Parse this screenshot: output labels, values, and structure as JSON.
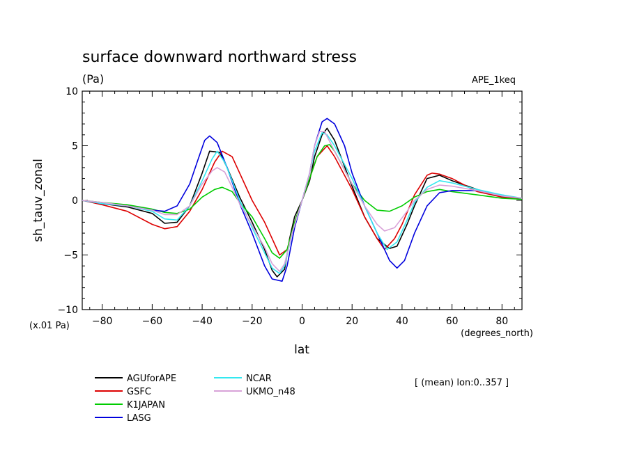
{
  "chart_data": {
    "type": "line",
    "title": "surface downward northward stress",
    "units_label": "(Pa)",
    "tag": "APE_1keq",
    "xlabel": "lat",
    "x_units": "(degrees_north)",
    "ylabel": "sh_tauv_zonal",
    "y_scale_note": "(x.01 Pa)",
    "footnote": "[ (mean) lon:0..357 ]",
    "xlim": [
      -88,
      88
    ],
    "ylim": [
      -10,
      10
    ],
    "x_ticks": [
      -80,
      -60,
      -40,
      -20,
      0,
      20,
      40,
      60,
      80
    ],
    "x_tick_labels": [
      "−80",
      "−60",
      "−40",
      "−20",
      "0",
      "20",
      "40",
      "60",
      "80"
    ],
    "y_ticks": [
      -10,
      -5,
      0,
      5,
      10
    ],
    "y_tick_labels": [
      "−10",
      "−5",
      "0",
      "5",
      "10"
    ],
    "grid": false,
    "legend_position": "bottom-left",
    "series": [
      {
        "name": "AGUforAPE",
        "color": "#000000",
        "points": [
          [
            -88,
            0
          ],
          [
            -80,
            -0.3
          ],
          [
            -70,
            -0.6
          ],
          [
            -60,
            -1.2
          ],
          [
            -55,
            -2.1
          ],
          [
            -50,
            -2.0
          ],
          [
            -45,
            -0.5
          ],
          [
            -40,
            2.5
          ],
          [
            -37,
            4.5
          ],
          [
            -33,
            4.4
          ],
          [
            -30,
            3.0
          ],
          [
            -25,
            0.3
          ],
          [
            -20,
            -2.0
          ],
          [
            -15,
            -4.5
          ],
          [
            -12,
            -6.4
          ],
          [
            -10,
            -7.0
          ],
          [
            -7,
            -6.3
          ],
          [
            -5,
            -3.5
          ],
          [
            -3,
            -1.5
          ],
          [
            0,
            0
          ],
          [
            3,
            1.8
          ],
          [
            5,
            4.0
          ],
          [
            8,
            6.0
          ],
          [
            10,
            6.6
          ],
          [
            13,
            5.5
          ],
          [
            20,
            1.3
          ],
          [
            25,
            -1.5
          ],
          [
            30,
            -3.5
          ],
          [
            35,
            -4.4
          ],
          [
            38,
            -4.2
          ],
          [
            42,
            -2.2
          ],
          [
            45,
            -0.5
          ],
          [
            50,
            2.0
          ],
          [
            55,
            2.3
          ],
          [
            60,
            1.8
          ],
          [
            70,
            1.0
          ],
          [
            80,
            0.3
          ],
          [
            88,
            0.1
          ]
        ]
      },
      {
        "name": "GSFC",
        "color": "#dd0000",
        "points": [
          [
            -88,
            0
          ],
          [
            -80,
            -0.4
          ],
          [
            -70,
            -1.0
          ],
          [
            -60,
            -2.2
          ],
          [
            -55,
            -2.6
          ],
          [
            -50,
            -2.4
          ],
          [
            -45,
            -1.0
          ],
          [
            -40,
            1.0
          ],
          [
            -35,
            3.5
          ],
          [
            -32,
            4.5
          ],
          [
            -28,
            4.0
          ],
          [
            -25,
            2.5
          ],
          [
            -20,
            0.0
          ],
          [
            -15,
            -2.0
          ],
          [
            -12,
            -3.5
          ],
          [
            -9,
            -5.0
          ],
          [
            -6,
            -4.5
          ],
          [
            -3,
            -2.0
          ],
          [
            0,
            0
          ],
          [
            3,
            2.0
          ],
          [
            6,
            4.0
          ],
          [
            10,
            5.0
          ],
          [
            13,
            4.0
          ],
          [
            20,
            1.0
          ],
          [
            25,
            -1.5
          ],
          [
            30,
            -3.5
          ],
          [
            33,
            -4.5
          ],
          [
            37,
            -3.5
          ],
          [
            40,
            -2.2
          ],
          [
            45,
            0.5
          ],
          [
            50,
            2.3
          ],
          [
            52,
            2.5
          ],
          [
            55,
            2.4
          ],
          [
            60,
            2.0
          ],
          [
            70,
            0.8
          ],
          [
            80,
            0.3
          ],
          [
            88,
            0.1
          ]
        ]
      },
      {
        "name": "K1JAPAN",
        "color": "#00cc00",
        "points": [
          [
            -88,
            0
          ],
          [
            -80,
            -0.2
          ],
          [
            -70,
            -0.4
          ],
          [
            -60,
            -0.8
          ],
          [
            -55,
            -1.1
          ],
          [
            -50,
            -1.2
          ],
          [
            -45,
            -0.8
          ],
          [
            -40,
            0.3
          ],
          [
            -35,
            1.0
          ],
          [
            -32,
            1.2
          ],
          [
            -28,
            0.8
          ],
          [
            -25,
            -0.2
          ],
          [
            -20,
            -1.5
          ],
          [
            -15,
            -3.5
          ],
          [
            -12,
            -4.8
          ],
          [
            -9,
            -5.3
          ],
          [
            -6,
            -4.5
          ],
          [
            -3,
            -2.0
          ],
          [
            0,
            0
          ],
          [
            3,
            2.0
          ],
          [
            6,
            4.0
          ],
          [
            9,
            5.0
          ],
          [
            11,
            5.1
          ],
          [
            13,
            4.5
          ],
          [
            20,
            1.5
          ],
          [
            25,
            0.0
          ],
          [
            30,
            -0.9
          ],
          [
            35,
            -1.0
          ],
          [
            40,
            -0.5
          ],
          [
            45,
            0.3
          ],
          [
            50,
            0.8
          ],
          [
            55,
            1.0
          ],
          [
            60,
            0.8
          ],
          [
            70,
            0.5
          ],
          [
            80,
            0.2
          ],
          [
            88,
            0.1
          ]
        ]
      },
      {
        "name": "LASG",
        "color": "#0000dd",
        "points": [
          [
            -88,
            0
          ],
          [
            -80,
            -0.3
          ],
          [
            -70,
            -0.5
          ],
          [
            -60,
            -0.9
          ],
          [
            -55,
            -1.0
          ],
          [
            -50,
            -0.5
          ],
          [
            -45,
            1.5
          ],
          [
            -42,
            3.5
          ],
          [
            -39,
            5.5
          ],
          [
            -37,
            5.9
          ],
          [
            -34,
            5.3
          ],
          [
            -30,
            3.0
          ],
          [
            -25,
            -0.3
          ],
          [
            -20,
            -3.0
          ],
          [
            -15,
            -6.0
          ],
          [
            -12,
            -7.2
          ],
          [
            -8,
            -7.4
          ],
          [
            -6,
            -6.0
          ],
          [
            -3,
            -2.5
          ],
          [
            0,
            0
          ],
          [
            3,
            2.5
          ],
          [
            5,
            5.0
          ],
          [
            8,
            7.2
          ],
          [
            10,
            7.5
          ],
          [
            13,
            7.0
          ],
          [
            17,
            5.0
          ],
          [
            20,
            2.5
          ],
          [
            25,
            -0.5
          ],
          [
            30,
            -3.0
          ],
          [
            35,
            -5.5
          ],
          [
            38,
            -6.2
          ],
          [
            41,
            -5.5
          ],
          [
            45,
            -3.0
          ],
          [
            50,
            -0.5
          ],
          [
            55,
            0.7
          ],
          [
            60,
            0.9
          ],
          [
            70,
            0.9
          ],
          [
            80,
            0.4
          ],
          [
            88,
            0.2
          ]
        ]
      },
      {
        "name": "NCAR",
        "color": "#33e8f0",
        "points": [
          [
            -88,
            0
          ],
          [
            -80,
            -0.3
          ],
          [
            -70,
            -0.5
          ],
          [
            -60,
            -1.0
          ],
          [
            -55,
            -1.7
          ],
          [
            -50,
            -1.8
          ],
          [
            -45,
            -0.5
          ],
          [
            -40,
            1.8
          ],
          [
            -36,
            3.8
          ],
          [
            -34,
            4.5
          ],
          [
            -31,
            3.5
          ],
          [
            -28,
            1.8
          ],
          [
            -25,
            0.0
          ],
          [
            -20,
            -2.5
          ],
          [
            -15,
            -4.8
          ],
          [
            -12,
            -6.2
          ],
          [
            -9,
            -6.7
          ],
          [
            -7,
            -6.0
          ],
          [
            -4,
            -3.0
          ],
          [
            0,
            0
          ],
          [
            3,
            2.5
          ],
          [
            5,
            4.5
          ],
          [
            8,
            6.2
          ],
          [
            10,
            6.0
          ],
          [
            13,
            5.0
          ],
          [
            20,
            2.0
          ],
          [
            25,
            -0.5
          ],
          [
            30,
            -3.0
          ],
          [
            34,
            -4.5
          ],
          [
            38,
            -3.8
          ],
          [
            42,
            -1.8
          ],
          [
            45,
            -0.2
          ],
          [
            50,
            1.2
          ],
          [
            55,
            1.8
          ],
          [
            60,
            1.6
          ],
          [
            70,
            1.0
          ],
          [
            80,
            0.5
          ],
          [
            88,
            0.2
          ]
        ]
      },
      {
        "name": "UKMO_n48",
        "color": "#d8a2d8",
        "points": [
          [
            -88,
            0
          ],
          [
            -80,
            -0.2
          ],
          [
            -70,
            -0.5
          ],
          [
            -60,
            -0.9
          ],
          [
            -55,
            -1.3
          ],
          [
            -50,
            -1.3
          ],
          [
            -45,
            -0.5
          ],
          [
            -40,
            1.5
          ],
          [
            -36,
            2.7
          ],
          [
            -34,
            3.0
          ],
          [
            -31,
            2.6
          ],
          [
            -28,
            1.2
          ],
          [
            -25,
            -0.3
          ],
          [
            -20,
            -2.3
          ],
          [
            -15,
            -4.3
          ],
          [
            -12,
            -5.8
          ],
          [
            -9,
            -6.5
          ],
          [
            -7,
            -5.8
          ],
          [
            -4,
            -3.0
          ],
          [
            0,
            0
          ],
          [
            3,
            2.5
          ],
          [
            5,
            5.0
          ],
          [
            7,
            6.3
          ],
          [
            9,
            6.3
          ],
          [
            13,
            4.5
          ],
          [
            20,
            1.5
          ],
          [
            25,
            -0.5
          ],
          [
            30,
            -2.2
          ],
          [
            33,
            -2.8
          ],
          [
            37,
            -2.5
          ],
          [
            42,
            -1.0
          ],
          [
            45,
            0.0
          ],
          [
            50,
            1.0
          ],
          [
            55,
            1.4
          ],
          [
            60,
            1.3
          ],
          [
            70,
            0.9
          ],
          [
            80,
            0.4
          ],
          [
            88,
            0.2
          ]
        ]
      }
    ]
  }
}
